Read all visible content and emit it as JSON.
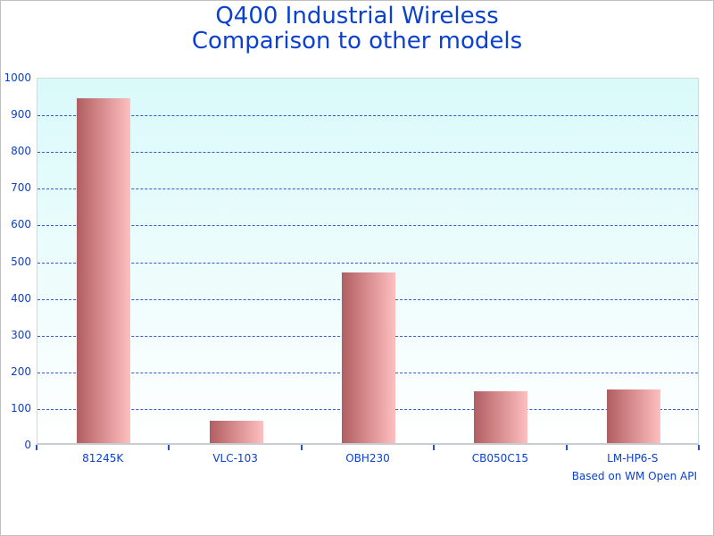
{
  "title": {
    "line1": "Q400 Industrial Wireless",
    "line2": "Comparison to other models"
  },
  "footnote": "Based on WM Open API",
  "colors": {
    "title_text": "#0b41d0",
    "axis_text": "#0b41d0",
    "gridline": "#3558c8",
    "tick": "#2b50c8",
    "plot_bg_top": "#d9fafa",
    "plot_bg_bottom": "#ffffff",
    "bar_gradient_left": "#b05e62",
    "bar_gradient_right": "#fdbfbf",
    "plot_border": "#ccdada",
    "axis_baseline": "#c8cdd2",
    "canvas_border": "#c0c0c0"
  },
  "chart_data": {
    "type": "bar",
    "title": "Q400 Industrial Wireless Comparison to other models",
    "categories": [
      "81245K",
      "VLC-103",
      "OBH230",
      "CB050C15",
      "LM-HP6-S"
    ],
    "values": [
      940,
      60,
      465,
      140,
      145
    ],
    "xlabel": "",
    "ylabel": "",
    "ylim": [
      0,
      1000
    ],
    "ytick_interval": 100,
    "ytick_labels": [
      "0",
      "100",
      "200",
      "300",
      "400",
      "500",
      "600",
      "700",
      "800",
      "900",
      "1000"
    ],
    "grid": "horizontal-dashed",
    "legend_position": "none",
    "annotation": "Based on WM Open API",
    "bar_orientation": "vertical"
  }
}
